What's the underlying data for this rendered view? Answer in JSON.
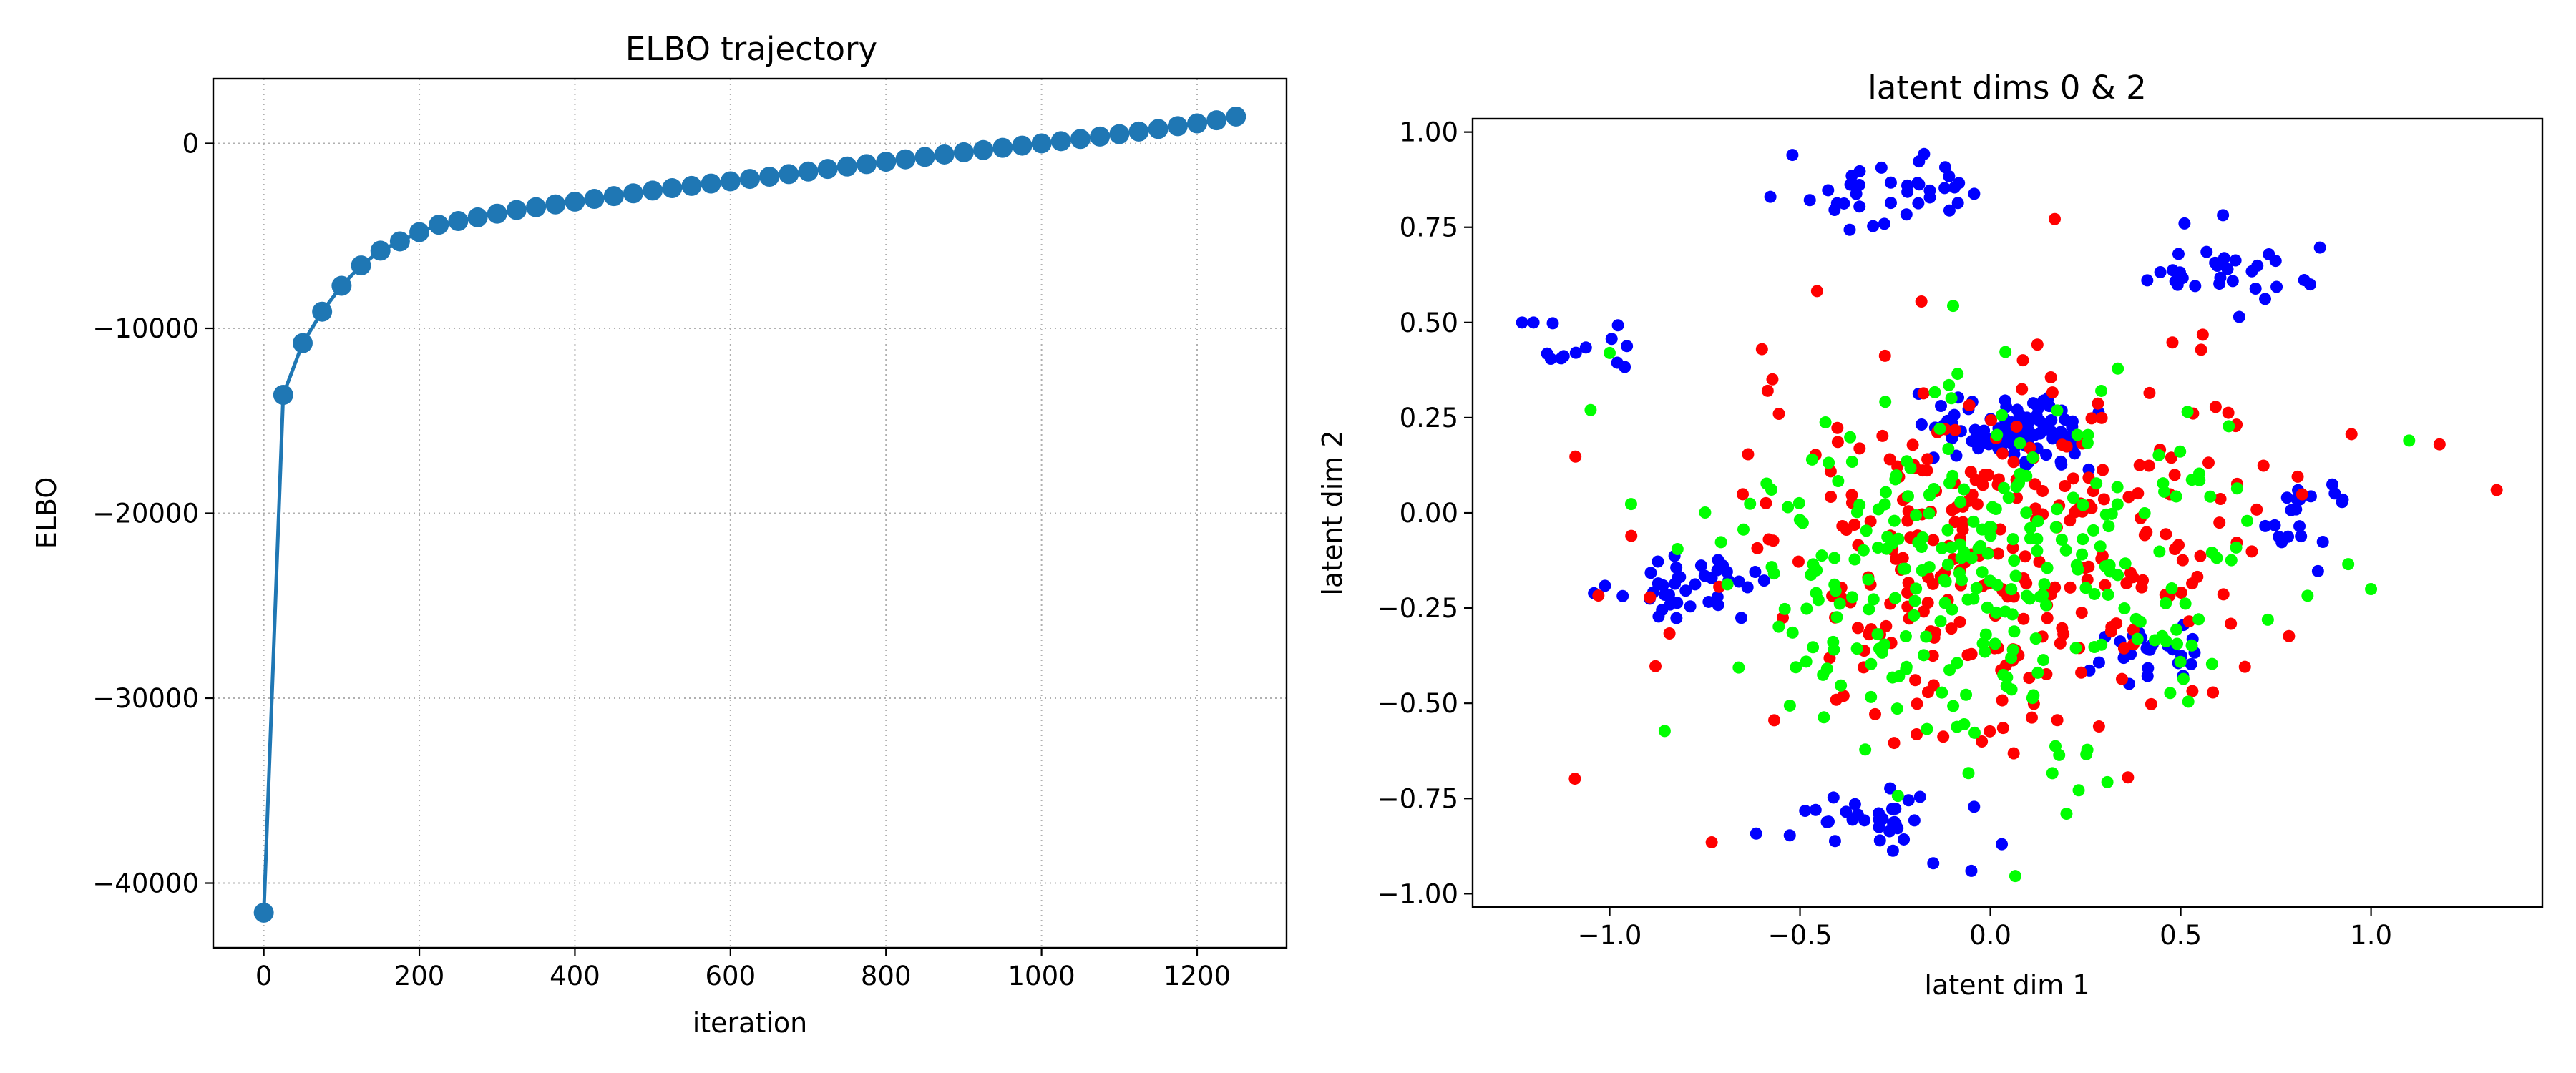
{
  "chart_data": [
    {
      "type": "line",
      "title": "ELBO trajectory",
      "xlabel": "iteration",
      "ylabel": "ELBO",
      "xlim": [
        -65,
        1315
      ],
      "ylim": [
        -43500,
        3500
      ],
      "xticks": [
        0,
        200,
        400,
        600,
        800,
        1000,
        1200
      ],
      "yticks": [
        0,
        -10000,
        -20000,
        -30000,
        -40000
      ],
      "ytick_labels": [
        "0",
        "−10000",
        "−20000",
        "−30000",
        "−40000"
      ],
      "grid": true,
      "grid_style": "dotted",
      "marker": "circle",
      "color": "#1f77b4",
      "x": [
        0,
        25,
        50,
        75,
        100,
        125,
        150,
        175,
        200,
        225,
        250,
        275,
        300,
        325,
        350,
        375,
        400,
        425,
        450,
        475,
        500,
        525,
        550,
        575,
        600,
        625,
        650,
        675,
        700,
        725,
        750,
        775,
        800,
        825,
        850,
        875,
        900,
        925,
        950,
        975,
        1000,
        1025,
        1050,
        1075,
        1100,
        1125,
        1150,
        1175,
        1200,
        1225,
        1250
      ],
      "y": [
        -41600,
        -13600,
        -10800,
        -9100,
        -7700,
        -6600,
        -5800,
        -5300,
        -4800,
        -4400,
        -4200,
        -4000,
        -3800,
        -3600,
        -3450,
        -3300,
        -3150,
        -3000,
        -2850,
        -2700,
        -2550,
        -2420,
        -2300,
        -2170,
        -2050,
        -1920,
        -1800,
        -1660,
        -1520,
        -1380,
        -1250,
        -1120,
        -990,
        -860,
        -730,
        -600,
        -480,
        -360,
        -240,
        -120,
        0,
        120,
        240,
        370,
        500,
        640,
        780,
        930,
        1080,
        1250,
        1450
      ]
    },
    {
      "type": "scatter",
      "title": "latent dims 0 & 2",
      "xlabel": "latent dim 1",
      "ylabel": "latent dim 2",
      "xlim": [
        -1.36,
        1.45
      ],
      "ylim": [
        -1.035,
        1.035
      ],
      "xticks": [
        -1.0,
        -0.5,
        0.0,
        0.5,
        1.0
      ],
      "xtick_labels": [
        "−1.0",
        "−0.5",
        "0.0",
        "0.5",
        "1.0"
      ],
      "yticks": [
        1.0,
        0.75,
        0.5,
        0.25,
        0.0,
        -0.25,
        -0.5,
        -0.75,
        -1.0
      ],
      "ytick_labels": [
        "1.00",
        "0.75",
        "0.50",
        "0.25",
        "0.00",
        "−0.25",
        "−0.50",
        "−0.75",
        "−1.00"
      ],
      "grid": false,
      "colors": {
        "blue": "#0000ff",
        "red": "#ff0000",
        "green": "#00ff00"
      },
      "clusters": [
        {
          "color": "blue",
          "center": [
            -0.25,
            0.84
          ],
          "spread": [
            0.13,
            0.04
          ],
          "n": 36,
          "seed": 11
        },
        {
          "color": "blue",
          "center": [
            0.63,
            0.63
          ],
          "spread": [
            0.12,
            0.04
          ],
          "n": 30,
          "seed": 12
        },
        {
          "color": "blue",
          "center": [
            0.05,
            0.21
          ],
          "spread": [
            0.1,
            0.045
          ],
          "n": 110,
          "seed": 13
        },
        {
          "color": "blue",
          "center": [
            -0.75,
            -0.2
          ],
          "spread": [
            0.09,
            0.05
          ],
          "n": 40,
          "seed": 14
        },
        {
          "color": "blue",
          "center": [
            -0.3,
            -0.81
          ],
          "spread": [
            0.1,
            0.04
          ],
          "n": 32,
          "seed": 15
        },
        {
          "color": "blue",
          "center": [
            0.43,
            -0.37
          ],
          "spread": [
            0.08,
            0.035
          ],
          "n": 25,
          "seed": 16
        },
        {
          "color": "blue",
          "center": [
            0.83,
            0.0
          ],
          "spread": [
            0.06,
            0.05
          ],
          "n": 20,
          "seed": 17
        },
        {
          "color": "blue",
          "center": [
            -1.08,
            0.43
          ],
          "spread": [
            0.07,
            0.04
          ],
          "n": 12,
          "seed": 18
        },
        {
          "color": "red",
          "center": [
            0.02,
            -0.12
          ],
          "spread": [
            0.36,
            0.24
          ],
          "n": 300,
          "seed": 21
        },
        {
          "color": "green",
          "center": [
            -0.05,
            -0.16
          ],
          "spread": [
            0.36,
            0.24
          ],
          "n": 290,
          "seed": 31
        }
      ],
      "points": [
        {
          "x": -0.52,
          "y": 0.94,
          "color": "blue"
        },
        {
          "x": 1.33,
          "y": 0.06,
          "color": "red"
        },
        {
          "x": -1.23,
          "y": 0.5,
          "color": "blue"
        },
        {
          "x": -1.2,
          "y": 0.5,
          "color": "blue"
        },
        {
          "x": 0.51,
          "y": 0.76,
          "color": "blue"
        },
        {
          "x": 0.84,
          "y": 0.6,
          "color": "blue"
        },
        {
          "x": -0.05,
          "y": -0.94,
          "color": "blue"
        },
        {
          "x": 0.03,
          "y": -0.87,
          "color": "blue"
        },
        {
          "x": 1.18,
          "y": 0.18,
          "color": "red"
        },
        {
          "x": -0.6,
          "y": 0.43,
          "color": "red"
        },
        {
          "x": -1.0,
          "y": 0.42,
          "color": "green"
        },
        {
          "x": 1.1,
          "y": 0.19,
          "color": "green"
        },
        {
          "x": 0.2,
          "y": -0.79,
          "color": "green"
        },
        {
          "x": -0.15,
          "y": -0.92,
          "color": "blue"
        },
        {
          "x": -1.05,
          "y": 0.27,
          "color": "green"
        },
        {
          "x": 1.0,
          "y": -0.2,
          "color": "green"
        }
      ]
    }
  ]
}
